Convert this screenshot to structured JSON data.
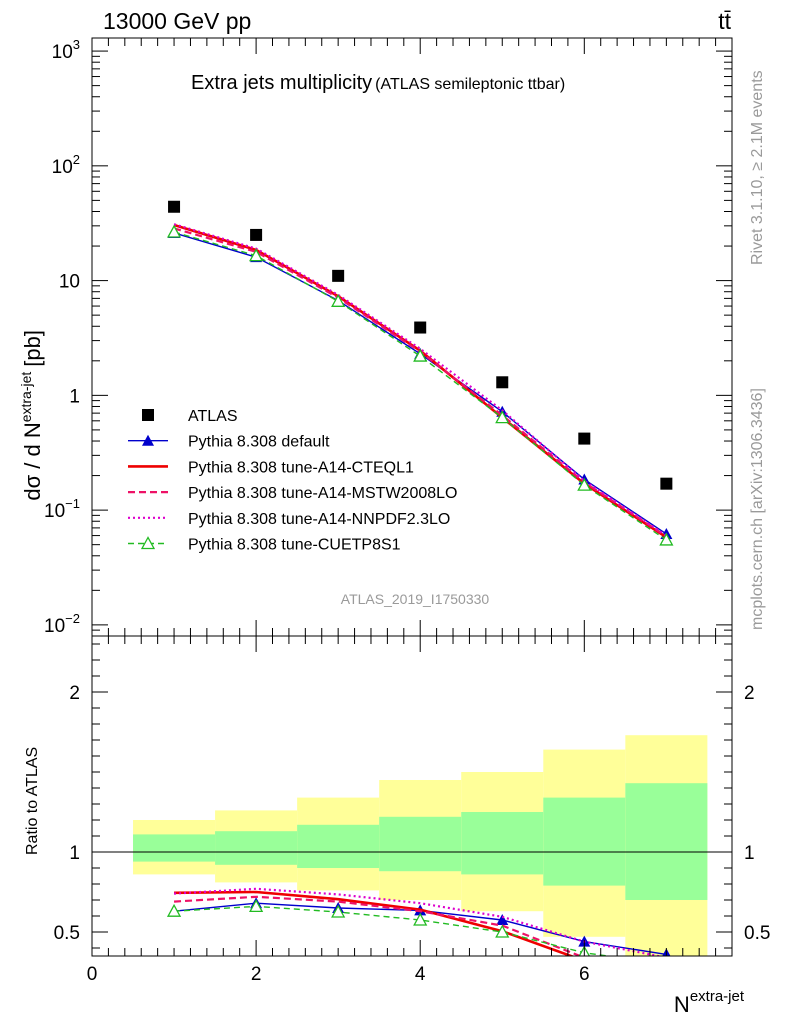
{
  "header": {
    "energy_label": "13000 GeV pp",
    "process_label": "tt̄"
  },
  "side_labels": {
    "rivet": "Rivet 3.1.10, ≥ 2.1M events",
    "mcplots": "mcplots.cern.ch [arXiv:1306.3436]"
  },
  "chart_data": [
    {
      "type": "scatter",
      "title": "Extra jets multiplicity",
      "subtitle": "(ATLAS semileptonic ttbar)",
      "ylabel": "dσ / d N^extra-jet [pb]",
      "ylabel_parts": {
        "main": "dσ / d N",
        "sup": "extra-jet",
        "unit": "[pb]"
      },
      "yscale": "log",
      "ylim": [
        0.008,
        1300
      ],
      "xlim": [
        0,
        7.8
      ],
      "analysis_label": "ATLAS_2019_I1750330",
      "y_tick_labels": [
        {
          "value": 1000,
          "base": "10",
          "exp": "3"
        },
        {
          "value": 100,
          "base": "10",
          "exp": "2"
        },
        {
          "value": 10,
          "base": "10",
          "exp": ""
        },
        {
          "value": 1,
          "base": "1",
          "exp": ""
        },
        {
          "value": 0.1,
          "base": "10",
          "exp": "−1"
        },
        {
          "value": 0.01,
          "base": "10",
          "exp": "−2"
        }
      ],
      "legend_position": "bottom-left",
      "x": [
        1,
        2,
        3,
        4,
        5,
        6,
        7
      ],
      "series": [
        {
          "name": "ATLAS",
          "color": "#000000",
          "style": "square-marker",
          "values": [
            44,
            25,
            11,
            3.9,
            1.3,
            0.42,
            0.17
          ]
        },
        {
          "name": "Pythia 8.308 default",
          "color": "#0000cc",
          "style": "line-filled-triangle",
          "values": [
            26,
            16,
            6.7,
            2.3,
            0.72,
            0.185,
            0.062
          ]
        },
        {
          "name": "Pythia 8.308 tune-A14-CTEQL1",
          "color": "#ee0000",
          "style": "solid-thick",
          "values": [
            30.5,
            18.5,
            7.3,
            2.45,
            0.64,
            0.17,
            0.058
          ]
        },
        {
          "name": "Pythia 8.308 tune-A14-MSTW2008LO",
          "color": "#ee1166",
          "style": "dashed",
          "values": [
            28.5,
            17.8,
            7.1,
            2.4,
            0.67,
            0.175,
            0.059
          ]
        },
        {
          "name": "Pythia 8.308 tune-A14-NNPDF2.3LO",
          "color": "#dd00cc",
          "style": "dotted",
          "values": [
            31,
            19,
            7.5,
            2.55,
            0.74,
            0.18,
            0.06
          ]
        },
        {
          "name": "Pythia 8.308 tune-CUETP8S1",
          "color": "#22bb22",
          "style": "dashed-open-triangle",
          "values": [
            26.5,
            16.5,
            6.6,
            2.2,
            0.64,
            0.165,
            0.055
          ]
        }
      ]
    },
    {
      "type": "line",
      "ylabel": "Ratio to ATLAS",
      "xlabel": "N^extra-jet",
      "xlabel_parts": {
        "main": "N",
        "sup": "extra-jet"
      },
      "xlim": [
        0,
        7.8
      ],
      "ylim": [
        0.35,
        2.35
      ],
      "x_tick_labels": [
        "0",
        "2",
        "4",
        "6"
      ],
      "y_tick_labels": [
        "0.5",
        "1",
        "2"
      ],
      "reference_line": 1,
      "bands": {
        "bins": [
          [
            0.5,
            1.5
          ],
          [
            1.5,
            2.5
          ],
          [
            2.5,
            3.5
          ],
          [
            3.5,
            4.5
          ],
          [
            4.5,
            5.5
          ],
          [
            5.5,
            6.5
          ],
          [
            6.5,
            7.5
          ]
        ],
        "inner_color": "#99ff99",
        "outer_color": "#ffff99",
        "inner": [
          [
            0.94,
            1.11
          ],
          [
            0.92,
            1.13
          ],
          [
            0.9,
            1.17
          ],
          [
            0.88,
            1.22
          ],
          [
            0.86,
            1.25
          ],
          [
            0.79,
            1.34
          ],
          [
            0.7,
            1.43
          ]
        ],
        "outer": [
          [
            0.86,
            1.2
          ],
          [
            0.81,
            1.26
          ],
          [
            0.76,
            1.34
          ],
          [
            0.7,
            1.45
          ],
          [
            0.63,
            1.5
          ],
          [
            0.47,
            1.64
          ],
          [
            0.33,
            1.73
          ]
        ]
      },
      "x": [
        1,
        2,
        3,
        4,
        5,
        6,
        7
      ],
      "series": [
        {
          "name": "Pythia 8.308 default",
          "color": "#0000cc",
          "values": [
            0.63,
            0.68,
            0.65,
            0.635,
            0.575,
            0.44,
            0.36
          ]
        },
        {
          "name": "Pythia 8.308 tune-A14-CTEQL1",
          "color": "#ee0000",
          "values": [
            0.745,
            0.75,
            0.705,
            0.64,
            0.505,
            0.32,
            0.3
          ]
        },
        {
          "name": "Pythia 8.308 tune-A14-MSTW2008LO",
          "color": "#ee1166",
          "values": [
            0.69,
            0.72,
            0.69,
            0.63,
            0.54,
            0.34,
            0.3
          ]
        },
        {
          "name": "Pythia 8.308 tune-A14-NNPDF2.3LO",
          "color": "#dd00cc",
          "values": [
            0.74,
            0.77,
            0.735,
            0.68,
            0.595,
            0.44,
            0.34
          ]
        },
        {
          "name": "Pythia 8.308 tune-CUETP8S1",
          "color": "#22bb22",
          "values": [
            0.63,
            0.66,
            0.625,
            0.575,
            0.5,
            0.37,
            0.3
          ]
        }
      ]
    }
  ]
}
